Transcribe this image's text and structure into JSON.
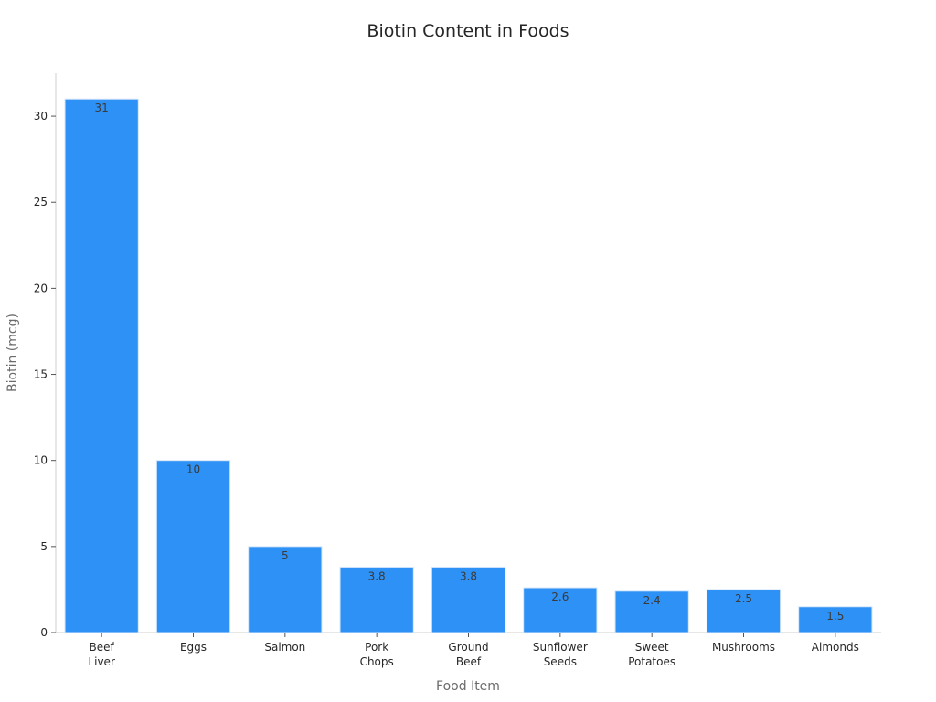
{
  "chart_data": {
    "type": "bar",
    "title": "Biotin Content in Foods",
    "xlabel": "Food Item",
    "ylabel": "Biotin (mcg)",
    "categories": [
      [
        "Beef",
        "Liver"
      ],
      [
        "Eggs"
      ],
      [
        "Salmon"
      ],
      [
        "Pork",
        "Chops"
      ],
      [
        "Ground",
        "Beef"
      ],
      [
        "Sunflower",
        "Seeds"
      ],
      [
        "Sweet",
        "Potatoes"
      ],
      [
        "Mushrooms"
      ],
      [
        "Almonds"
      ]
    ],
    "values": [
      31,
      10,
      5,
      3.8,
      3.8,
      2.6,
      2.4,
      2.5,
      1.5
    ],
    "data_labels": [
      "31",
      "10",
      "5",
      "3.8",
      "3.8",
      "2.6",
      "2.4",
      "2.5",
      "1.5"
    ],
    "ylim": [
      0,
      32.5
    ],
    "yticks": [
      0,
      5,
      10,
      15,
      20,
      25,
      30
    ],
    "ytick_labels": [
      "0",
      "5",
      "10",
      "15",
      "20",
      "25",
      "30"
    ],
    "grid": false,
    "legend": "none",
    "colors": {
      "bar": "#2e91f5",
      "bar_edge": "#d4e6fb",
      "axis": "#cfcfcf",
      "text": "#262626",
      "label": "#6b6b6b"
    }
  }
}
